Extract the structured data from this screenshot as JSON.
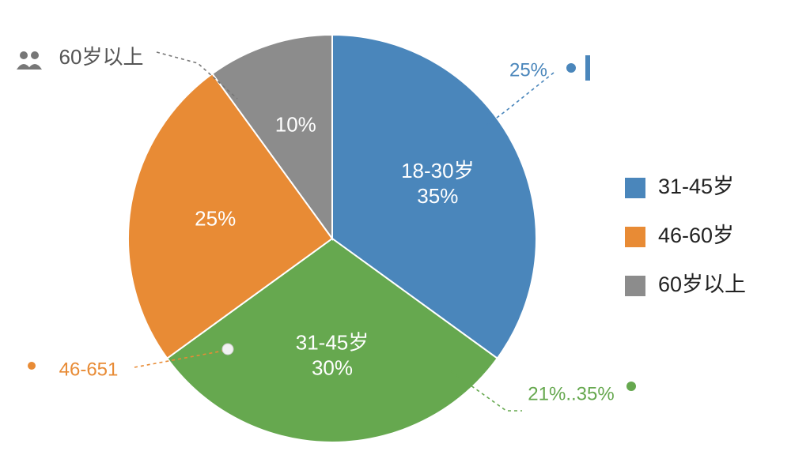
{
  "chart_data": {
    "type": "pie",
    "categories": [
      "18-30岁",
      "31-45岁",
      null,
      null
    ],
    "values": [
      35,
      30,
      25,
      10
    ],
    "value_labels": [
      "35%",
      "30%",
      "25%",
      "10%"
    ],
    "colors": [
      "#4a86bb",
      "#66a84f",
      "#e88b35",
      "#8c8c8c"
    ],
    "legend_position": "right",
    "legend": [
      {
        "label": "31-45岁",
        "color": "#4a86bb"
      },
      {
        "label": "46-60岁",
        "color": "#e88b35"
      },
      {
        "label": "60岁以上",
        "color": "#8c8c8c"
      }
    ],
    "annotations": [
      "25%",
      "21%..35%",
      "46-651",
      "60岁以上"
    ]
  }
}
